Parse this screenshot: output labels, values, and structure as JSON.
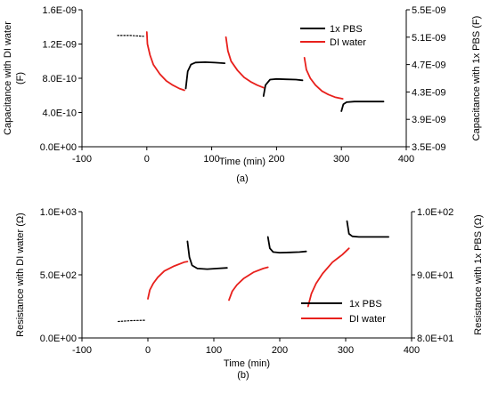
{
  "colors": {
    "pbs": "#000000",
    "di": "#e8201c",
    "axis": "#000000"
  },
  "chart_data": [
    {
      "type": "line",
      "caption": "(a)",
      "xlabel": "Time (min)",
      "ylabel": "Capacitance with DI water (F)",
      "ylabel_lines": [
        "Capacitance with DI water",
        "(F)"
      ],
      "y2label": "Capacitance with 1x PBS (F)",
      "xlim": [
        -100,
        400
      ],
      "ylim": [
        0,
        1.6e-09
      ],
      "y2lim": [
        3.5e-09,
        5.5e-09
      ],
      "x_ticks": [
        -100,
        0,
        100,
        200,
        300,
        400
      ],
      "x_tick_labels": [
        "-100",
        "0",
        "100",
        "200",
        "300",
        "400"
      ],
      "y_ticks": [
        0,
        4e-10,
        8e-10,
        1.2e-09,
        1.6e-09
      ],
      "y_tick_labels": [
        "0.0E+00",
        "4.0E-10",
        "8.0E-10",
        "1.2E-09",
        "1.6E-09"
      ],
      "y2_ticks": [
        3.5e-09,
        3.9e-09,
        4.3e-09,
        4.7e-09,
        5.1e-09,
        5.5e-09
      ],
      "y2_tick_labels": [
        "3.5E-09",
        "3.9E-09",
        "4.3E-09",
        "4.7E-09",
        "5.1E-09",
        "5.5E-09"
      ],
      "grid": false,
      "legend_position": "top-right",
      "series": [
        {
          "name": "1x PBS",
          "color": "#000000",
          "axis": "y2",
          "style": "solid",
          "segments": [
            [
              [
                60,
                4.35e-09
              ],
              [
                63,
                4.6e-09
              ],
              [
                68,
                4.7e-09
              ],
              [
                75,
                4.73e-09
              ],
              [
                90,
                4.735e-09
              ],
              [
                105,
                4.728e-09
              ],
              [
                120,
                4.72e-09
              ]
            ],
            [
              [
                180,
                4.24e-09
              ],
              [
                183,
                4.4e-09
              ],
              [
                190,
                4.48e-09
              ],
              [
                200,
                4.49e-09
              ],
              [
                215,
                4.485e-09
              ],
              [
                230,
                4.48e-09
              ],
              [
                240,
                4.47e-09
              ]
            ],
            [
              [
                300,
                4.02e-09
              ],
              [
                303,
                4.12e-09
              ],
              [
                308,
                4.15e-09
              ],
              [
                320,
                4.16e-09
              ],
              [
                340,
                4.16e-09
              ],
              [
                365,
                4.16e-09
              ]
            ]
          ]
        },
        {
          "name": "",
          "color": "#000000",
          "axis": "y",
          "style": "dotted",
          "segments": [
            [
              [
                -45,
                1.3e-09
              ],
              [
                -25,
                1.3e-09
              ],
              [
                -5,
                1.29e-09
              ]
            ]
          ]
        },
        {
          "name": "DI water",
          "color": "#e8201c",
          "axis": "y",
          "style": "solid",
          "segments": [
            [
              [
                0,
                1.34e-09
              ],
              [
                1,
                1.2e-09
              ],
              [
                5,
                1.07e-09
              ],
              [
                10,
                9.6e-10
              ],
              [
                20,
                8.5e-10
              ],
              [
                30,
                7.7e-10
              ],
              [
                40,
                7.2e-10
              ],
              [
                50,
                6.8e-10
              ],
              [
                58,
                6.6e-10
              ]
            ],
            [
              [
                122,
                1.28e-09
              ],
              [
                125,
                1.12e-09
              ],
              [
                130,
                1e-09
              ],
              [
                140,
                8.9e-10
              ],
              [
                150,
                8.1e-10
              ],
              [
                160,
                7.6e-10
              ],
              [
                170,
                7.2e-10
              ],
              [
                180,
                6.9e-10
              ]
            ],
            [
              [
                243,
                1.04e-09
              ],
              [
                246,
                9e-10
              ],
              [
                252,
                8e-10
              ],
              [
                260,
                7.2e-10
              ],
              [
                270,
                6.5e-10
              ],
              [
                280,
                6.1e-10
              ],
              [
                290,
                5.8e-10
              ],
              [
                302,
                5.6e-10
              ]
            ]
          ]
        }
      ]
    },
    {
      "type": "line",
      "caption": "(b)",
      "xlabel": "Time (min)",
      "ylabel": "Resistance with DI water (Ω)",
      "y2label": "Resistance with 1x PBS (Ω)",
      "xlim": [
        -100,
        400
      ],
      "ylim": [
        0,
        1000
      ],
      "y2lim": [
        80,
        100
      ],
      "x_ticks": [
        -100,
        0,
        100,
        200,
        300,
        400
      ],
      "x_tick_labels": [
        "-100",
        "0",
        "100",
        "200",
        "300",
        "400"
      ],
      "y_ticks": [
        0,
        500,
        1000
      ],
      "y_tick_labels": [
        "0.0E+00",
        "5.0E+02",
        "1.0E+03"
      ],
      "y2_ticks": [
        80,
        90,
        100
      ],
      "y2_tick_labels": [
        "8.0E+01",
        "9.0E+01",
        "1.0E+02"
      ],
      "grid": false,
      "legend_position": "bottom-right",
      "series": [
        {
          "name": "1x PBS",
          "color": "#000000",
          "axis": "y2",
          "style": "solid",
          "segments": [
            [
              [
                60,
                95.3
              ],
              [
                63,
                92.8
              ],
              [
                67,
                91.5
              ],
              [
                75,
                91.0
              ],
              [
                90,
                90.9
              ],
              [
                105,
                91.0
              ],
              [
                120,
                91.1
              ]
            ],
            [
              [
                182,
                96.0
              ],
              [
                185,
                94.2
              ],
              [
                190,
                93.6
              ],
              [
                200,
                93.5
              ],
              [
                215,
                93.55
              ],
              [
                230,
                93.6
              ],
              [
                240,
                93.7
              ]
            ],
            [
              [
                302,
                98.5
              ],
              [
                305,
                96.5
              ],
              [
                310,
                96.1
              ],
              [
                320,
                96.0
              ],
              [
                340,
                96.0
              ],
              [
                365,
                96.0
              ]
            ]
          ]
        },
        {
          "name": "",
          "color": "#000000",
          "axis": "y2",
          "style": "dotted",
          "segments": [
            [
              [
                -45,
                82.6
              ],
              [
                -25,
                82.75
              ],
              [
                -5,
                82.8
              ]
            ]
          ]
        },
        {
          "name": "DI water",
          "color": "#e8201c",
          "axis": "y",
          "style": "solid",
          "segments": [
            [
              [
                0,
                310
              ],
              [
                3,
                380
              ],
              [
                8,
                430
              ],
              [
                15,
                480
              ],
              [
                25,
                530
              ],
              [
                40,
                570
              ],
              [
                55,
                600
              ],
              [
                60,
                605
              ]
            ],
            [
              [
                123,
                300
              ],
              [
                128,
                370
              ],
              [
                135,
                420
              ],
              [
                145,
                470
              ],
              [
                160,
                520
              ],
              [
                175,
                550
              ],
              [
                182,
                560
              ]
            ],
            [
              [
                243,
                250
              ],
              [
                248,
                350
              ],
              [
                255,
                430
              ],
              [
                265,
                510
              ],
              [
                280,
                600
              ],
              [
                295,
                660
              ],
              [
                305,
                710
              ]
            ]
          ]
        }
      ]
    }
  ]
}
